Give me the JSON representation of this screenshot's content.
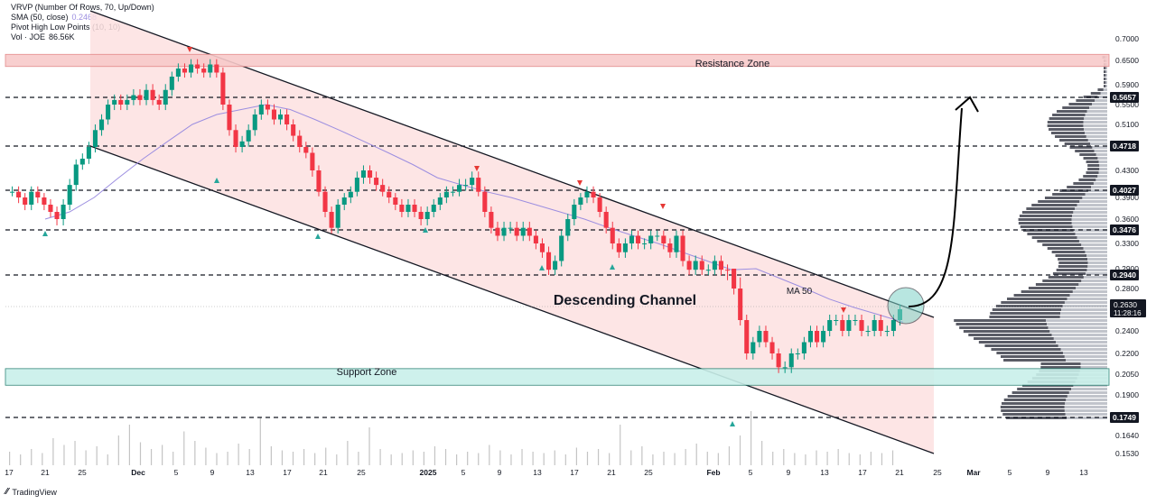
{
  "legend": {
    "vrvp": "VRVP (Number Of Rows, 70, Up/Down)",
    "sma_label": "SMA (50, close)",
    "sma_value": "0.2468",
    "pivot": "Pivot High Low Points (10, 10)",
    "vol_label": "Vol · JOE",
    "vol_value": "86.56K"
  },
  "branding": {
    "name": "TradingView"
  },
  "colors": {
    "up": "#089981",
    "down": "#f23645",
    "channel_fill": "#fde0e0",
    "resistance_fill": "#f8caca",
    "support_fill": "#c9f0ea",
    "sma": "#9c8ee0",
    "marker_up": "#26a69a",
    "marker_down": "#e53935",
    "price_label_bg": "#131722"
  },
  "chart_data": {
    "type": "candlestick",
    "symbol": "JOE",
    "y_axis_ticks": [
      "0.7000",
      "0.6500",
      "0.5900",
      "0.5500",
      "0.5100",
      "0.4700",
      "0.4300",
      "0.3900",
      "0.3600",
      "0.3300",
      "0.2900",
      "0.2800",
      "0.2600",
      "0.2400",
      "0.2200",
      "0.2050",
      "0.1900",
      "0.1749",
      "0.1640",
      "0.1530"
    ],
    "x_axis_ticks": [
      "17",
      "21",
      "25",
      "Dec",
      "5",
      "9",
      "13",
      "17",
      "21",
      "25",
      "2025",
      "5",
      "9",
      "13",
      "17",
      "21",
      "25",
      "Feb",
      "5",
      "9",
      "13",
      "17",
      "21",
      "25",
      "Mar",
      "5",
      "9",
      "13"
    ],
    "horizontal_levels": [
      "0.5657",
      "0.4718",
      "0.4027",
      "0.3476",
      "0.2940",
      "0.1749"
    ],
    "current_price": "0.2630",
    "countdown": "11:28:16",
    "annotations": {
      "resistance": "Resistance Zone",
      "support": "Support Zone",
      "channel": "Descending Channel",
      "ma": "MA 50"
    },
    "resistance_zone": [
      0.635,
      0.664
    ],
    "support_zone": [
      0.197,
      0.209
    ],
    "closes": [
      0.4,
      0.39,
      0.38,
      0.4,
      0.39,
      0.38,
      0.37,
      0.36,
      0.38,
      0.41,
      0.44,
      0.45,
      0.47,
      0.5,
      0.52,
      0.55,
      0.56,
      0.55,
      0.56,
      0.57,
      0.56,
      0.58,
      0.56,
      0.55,
      0.58,
      0.61,
      0.63,
      0.62,
      0.64,
      0.63,
      0.62,
      0.64,
      0.62,
      0.55,
      0.5,
      0.47,
      0.48,
      0.5,
      0.53,
      0.55,
      0.54,
      0.52,
      0.53,
      0.51,
      0.49,
      0.47,
      0.46,
      0.43,
      0.4,
      0.37,
      0.35,
      0.38,
      0.39,
      0.4,
      0.42,
      0.43,
      0.42,
      0.41,
      0.4,
      0.39,
      0.38,
      0.37,
      0.38,
      0.37,
      0.36,
      0.37,
      0.38,
      0.39,
      0.4,
      0.4,
      0.41,
      0.41,
      0.42,
      0.4,
      0.37,
      0.35,
      0.34,
      0.35,
      0.35,
      0.34,
      0.35,
      0.34,
      0.33,
      0.32,
      0.3,
      0.31,
      0.34,
      0.36,
      0.38,
      0.39,
      0.4,
      0.39,
      0.37,
      0.35,
      0.33,
      0.32,
      0.33,
      0.34,
      0.33,
      0.33,
      0.34,
      0.34,
      0.33,
      0.32,
      0.34,
      0.31,
      0.3,
      0.31,
      0.3,
      0.3,
      0.31,
      0.3,
      0.29,
      0.28,
      0.25,
      0.22,
      0.23,
      0.24,
      0.23,
      0.22,
      0.21,
      0.21,
      0.22,
      0.22,
      0.23,
      0.24,
      0.23,
      0.24,
      0.25,
      0.25,
      0.24,
      0.25,
      0.25,
      0.24,
      0.24,
      0.25,
      0.24,
      0.24,
      0.25,
      0.26
    ],
    "sma50": [
      0.36,
      0.37,
      0.39,
      0.42,
      0.45,
      0.48,
      0.51,
      0.53,
      0.54,
      0.55,
      0.54,
      0.52,
      0.5,
      0.48,
      0.46,
      0.44,
      0.42,
      0.41,
      0.4,
      0.39,
      0.38,
      0.37,
      0.36,
      0.35,
      0.34,
      0.33,
      0.32,
      0.31,
      0.3,
      0.29,
      0.285,
      0.28,
      0.27,
      0.262,
      0.255,
      0.248
    ],
    "volume": [
      0.1,
      0.08,
      0.12,
      0.09,
      0.2,
      0.15,
      0.18,
      0.11,
      0.14,
      0.08,
      0.22,
      0.3,
      0.17,
      0.12,
      0.15,
      0.1,
      0.25,
      0.18,
      0.13,
      0.09,
      0.1,
      0.16,
      0.12,
      0.35,
      0.14,
      0.11,
      0.1,
      0.12,
      0.09,
      0.13,
      0.08,
      0.18,
      0.1,
      0.28,
      0.12,
      0.08,
      0.09,
      0.11,
      0.1,
      0.14,
      0.12,
      0.08,
      0.1,
      0.09,
      0.15,
      0.11,
      0.08,
      0.12,
      0.1,
      0.09,
      0.11,
      0.08,
      0.13,
      0.1,
      0.12,
      0.09,
      0.3,
      0.11,
      0.14,
      0.08,
      0.1,
      0.09,
      0.12,
      0.16,
      0.1,
      0.09,
      0.14,
      0.22,
      0.4,
      0.18,
      0.1,
      0.12,
      0.09,
      0.08,
      0.11,
      0.1,
      0.12,
      0.09,
      0.08,
      0.1,
      0.09,
      0.11
    ]
  }
}
